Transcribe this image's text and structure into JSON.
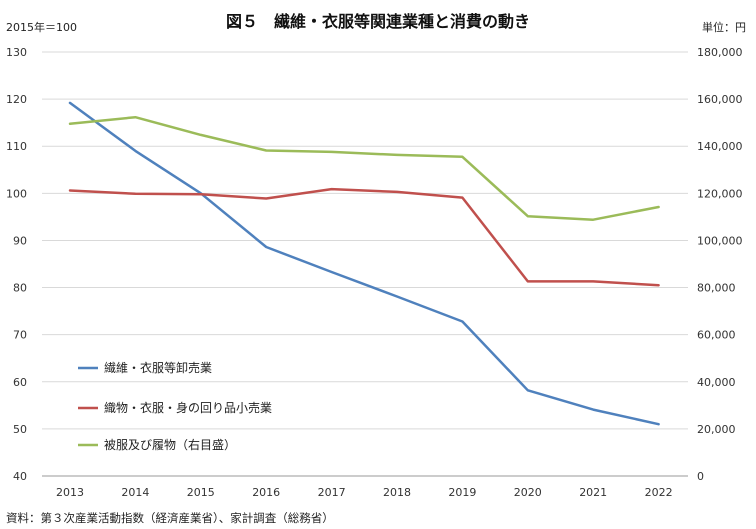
{
  "chart_data": {
    "type": "line",
    "title": "図５　繊維・衣服等関連業種と消費の動き",
    "left_axis_note": "2015年＝100",
    "right_axis_note": "単位：円",
    "source": "資料：第３次産業活動指数（経済産業省）、家計調査（総務省）",
    "categories": [
      "2013",
      "2014",
      "2015",
      "2016",
      "2017",
      "2018",
      "2019",
      "2020",
      "2021",
      "2022"
    ],
    "y_left": {
      "min": 40,
      "max": 130,
      "ticks": [
        "40",
        "50",
        "60",
        "70",
        "80",
        "90",
        "100",
        "110",
        "120",
        "130"
      ]
    },
    "y_right": {
      "min": 0,
      "max": 180000,
      "ticks": [
        "0",
        "20,000",
        "40,000",
        "60,000",
        "80,000",
        "100,000",
        "120,000",
        "140,000",
        "160,000",
        "180,000"
      ]
    },
    "grid": true,
    "legend_position": "lower-left",
    "series": [
      {
        "name": "繊維・衣服等卸売業",
        "color": "#4f81bd",
        "axis": "left",
        "values": [
          119.2,
          109.0,
          100.0,
          88.6,
          83.3,
          78.1,
          72.8,
          58.2,
          54.1,
          51.0
        ]
      },
      {
        "name": "織物・衣服・身の回り品小売業",
        "color": "#c0504d",
        "axis": "left",
        "values": [
          100.6,
          99.9,
          99.8,
          98.9,
          100.9,
          100.3,
          99.1,
          81.3,
          81.3,
          80.5
        ]
      },
      {
        "name": "被服及び履物（右目盛）",
        "color": "#9bbb59",
        "axis": "right",
        "values": [
          149500,
          152300,
          144800,
          138200,
          137600,
          136300,
          135500,
          110300,
          108800,
          114200
        ]
      }
    ]
  }
}
